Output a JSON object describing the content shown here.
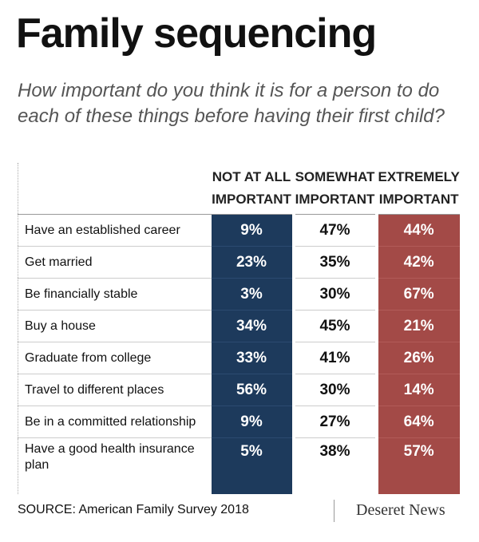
{
  "header": {
    "title": "Family sequencing",
    "subtitle": "How important do you think it is for a person to do each of these things before having their first child?"
  },
  "table": {
    "columns": [
      [
        "NOT AT ALL",
        "IMPORTANT"
      ],
      [
        "SOMEWHAT",
        "IMPORTANT"
      ],
      [
        "EXTREMELY",
        "IMPORTANT"
      ]
    ],
    "rows": [
      [
        "Have an established career",
        "9%",
        "47%",
        "44%"
      ],
      [
        "Get married",
        "23%",
        "35%",
        "42%"
      ],
      [
        "Be financially stable",
        "3%",
        "30%",
        "67%"
      ],
      [
        "Buy a house",
        "34%",
        "45%",
        "21%"
      ],
      [
        "Graduate from college",
        "33%",
        "41%",
        "26%"
      ],
      [
        "Travel to different places",
        "56%",
        "30%",
        "14%"
      ],
      [
        "Be in a committed relationship",
        "9%",
        "27%",
        "64%"
      ],
      [
        "Have a good health insurance plan",
        "5%",
        "38%",
        "57%"
      ]
    ]
  },
  "footer": {
    "source": "SOURCE: American Family Survey 2018",
    "brand": "Deseret News"
  }
}
